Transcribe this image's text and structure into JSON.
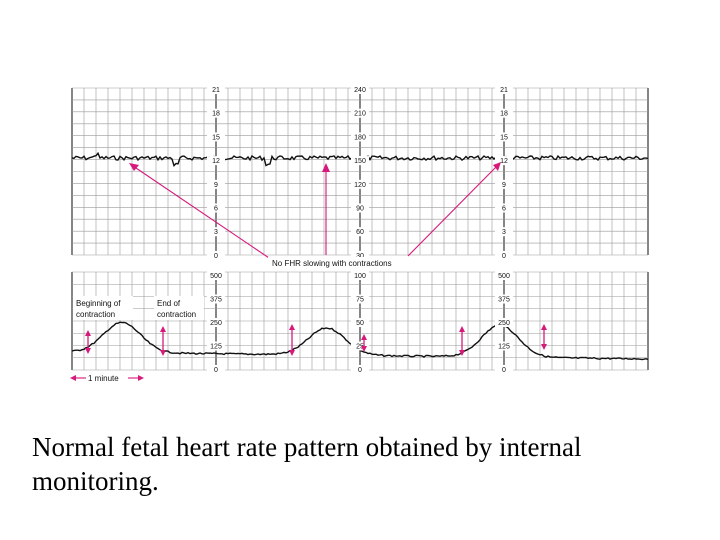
{
  "colors": {
    "grid": "#9a9a9a",
    "grid_major": "#222222",
    "trace": "#111111",
    "arrow": "#d6197a",
    "background": "#ffffff"
  },
  "top_strip": {
    "left_scale": [
      "21",
      "18",
      "15",
      "12",
      "9",
      "6",
      "3",
      "0"
    ],
    "center_scale": [
      "240",
      "210",
      "180",
      "150",
      "120",
      "90",
      "60",
      "30"
    ],
    "right_scale": [
      "21",
      "18",
      "15",
      "12",
      "9",
      "6",
      "3",
      "0"
    ]
  },
  "bottom_strip": {
    "left_scale": [
      "500",
      "375",
      "250",
      "125",
      "0"
    ],
    "center_scale": [
      "100",
      "75",
      "50",
      "25",
      "0"
    ],
    "right_scale": [
      "500",
      "375",
      "250",
      "125",
      "0"
    ]
  },
  "annotations": {
    "no_fhr_slowing": "No FHR slowing with contractions",
    "beginning_line1": "Beginning of",
    "beginning_line2": "contraction",
    "end_line1": "End of",
    "end_line2": "contraction",
    "one_minute": "1 minute"
  },
  "caption": "Normal fetal heart rate pattern obtained by internal monitoring."
}
